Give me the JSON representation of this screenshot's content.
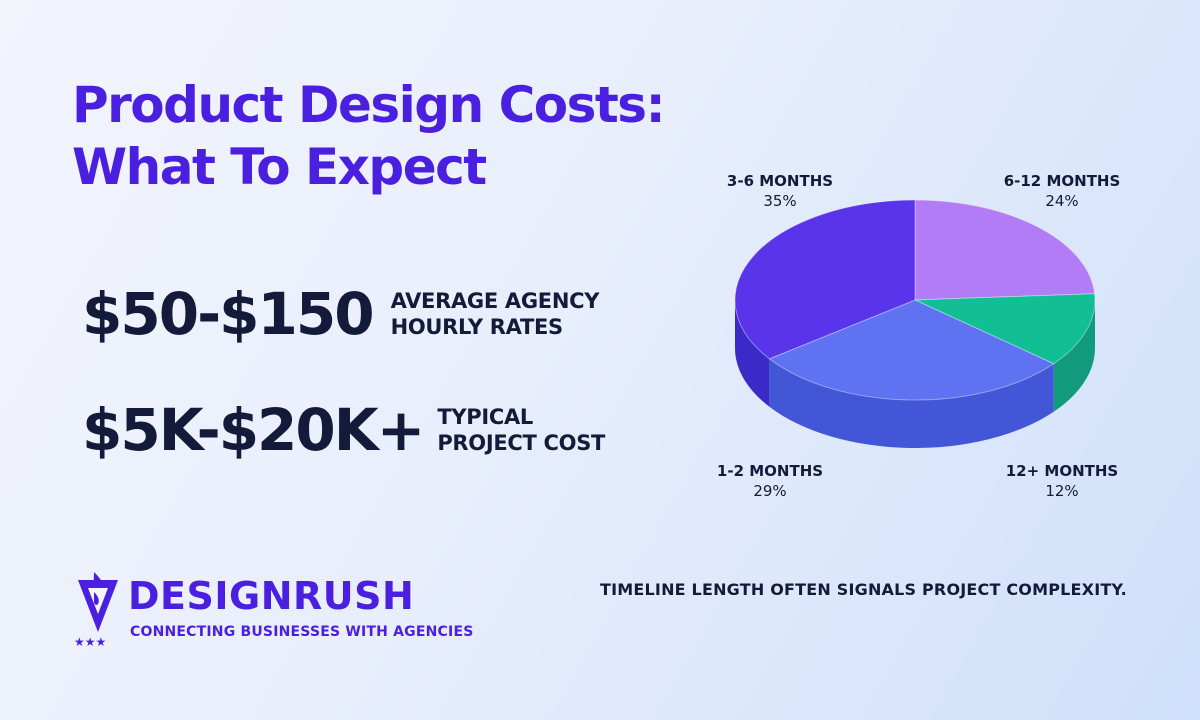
{
  "title_line1": "Product Design Costs:",
  "title_line2": "What To Expect",
  "stats": [
    {
      "value": "$50-$150",
      "desc_line1": "AVERAGE AGENCY",
      "desc_line2": "HOURLY RATES"
    },
    {
      "value": "$5K-$20K+",
      "desc_line1": "TYPICAL",
      "desc_line2": "PROJECT COST"
    }
  ],
  "brand": {
    "name": "DESIGNRUSH",
    "tagline": "CONNECTING BUSINESSES WITH AGENCIES"
  },
  "note": "TIMELINE LENGTH OFTEN SIGNALS PROJECT COMPLEXITY.",
  "colors": {
    "title": "#4b1fe0",
    "text": "#141a3a"
  },
  "chart_data": {
    "type": "pie",
    "style": "3d",
    "title": "",
    "slices": [
      {
        "label": "6-12 MONTHS",
        "value_label": "24%",
        "value": 24,
        "color": "#b27cf6",
        "side": "#8d55e8",
        "label_pos": "top-right"
      },
      {
        "label": "12+ MONTHS",
        "value_label": "12%",
        "value": 12,
        "color": "#12bf95",
        "side": "#129a7c",
        "label_pos": "bottom-right"
      },
      {
        "label": "1-2 MONTHS",
        "value_label": "29%",
        "value": 29,
        "color": "#5f72f2",
        "side": "#4456d8",
        "label_pos": "bottom-left"
      },
      {
        "label": "3-6 MONTHS",
        "value_label": "35%",
        "value": 35,
        "color": "#5a34ea",
        "side": "#3c2ac8",
        "label_pos": "top-left"
      }
    ]
  }
}
